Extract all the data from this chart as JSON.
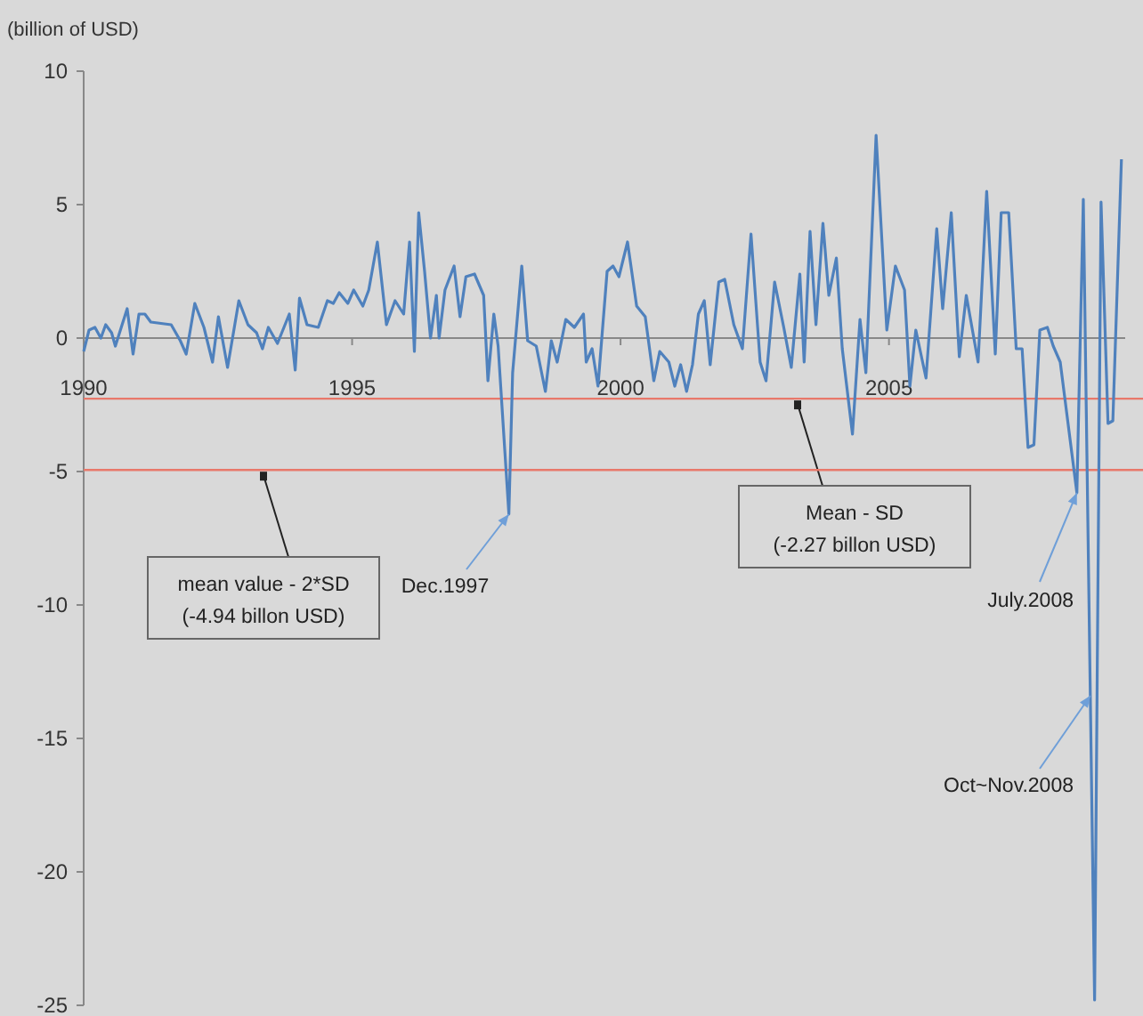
{
  "chart_data": {
    "type": "line",
    "ylabel": "(billion of USD)",
    "xlim": [
      1990,
      2009.4
    ],
    "xticks": [
      1990,
      1995,
      2000,
      2005
    ],
    "ylim": [
      -25,
      10
    ],
    "yticks": [
      -25,
      -20,
      -15,
      -10,
      -5,
      0,
      5,
      10
    ],
    "grid": false,
    "marker": "none",
    "line_style": "solid",
    "series": [
      {
        "color": "#4f81bd",
        "x": [
          1990.0,
          1990.1,
          1990.21,
          1990.32,
          1990.41,
          1990.52,
          1990.59,
          1990.7,
          1990.81,
          1990.92,
          1991.03,
          1991.14,
          1991.25,
          1991.63,
          1991.8,
          1991.91,
          1992.07,
          1992.24,
          1992.4,
          1992.51,
          1992.68,
          1992.89,
          1993.06,
          1993.22,
          1993.33,
          1993.44,
          1993.61,
          1993.83,
          1993.94,
          1994.02,
          1994.16,
          1994.37,
          1994.54,
          1994.65,
          1994.76,
          1994.92,
          1995.03,
          1995.2,
          1995.31,
          1995.47,
          1995.64,
          1995.8,
          1995.96,
          1996.07,
          1996.16,
          1996.24,
          1996.35,
          1996.46,
          1996.57,
          1996.62,
          1996.73,
          1996.9,
          1997.01,
          1997.12,
          1997.28,
          1997.45,
          1997.53,
          1997.64,
          1997.72,
          1997.92,
          1997.99,
          1998.16,
          1998.27,
          1998.43,
          1998.6,
          1998.71,
          1998.82,
          1998.98,
          1999.14,
          1999.31,
          1999.36,
          1999.47,
          1999.58,
          1999.75,
          1999.86,
          1999.97,
          2000.13,
          2000.3,
          2000.46,
          2000.62,
          2000.73,
          2000.9,
          2001.01,
          2001.12,
          2001.23,
          2001.34,
          2001.45,
          2001.56,
          2001.67,
          2001.83,
          2001.94,
          2002.11,
          2002.27,
          2002.43,
          2002.6,
          2002.71,
          2002.87,
          2003.04,
          2003.18,
          2003.34,
          2003.42,
          2003.53,
          2003.64,
          2003.77,
          2003.88,
          2004.02,
          2004.13,
          2004.32,
          2004.46,
          2004.57,
          2004.76,
          2004.96,
          2005.12,
          2005.29,
          2005.39,
          2005.5,
          2005.69,
          2005.89,
          2006.0,
          2006.16,
          2006.31,
          2006.44,
          2006.66,
          2006.82,
          2006.98,
          2007.09,
          2007.23,
          2007.37,
          2007.48,
          2007.59,
          2007.7,
          2007.81,
          2007.95,
          2008.06,
          2008.19,
          2008.5,
          2008.62,
          2008.83,
          2008.95,
          2009.08,
          2009.17,
          2009.33
        ],
        "values": [
          -0.5,
          0.3,
          0.4,
          0,
          0.5,
          0.2,
          -0.3,
          0.4,
          1.1,
          -0.6,
          0.9,
          0.9,
          0.6,
          0.5,
          -0.1,
          -0.6,
          1.3,
          0.4,
          -0.9,
          0.8,
          -1.1,
          1.4,
          0.5,
          0.2,
          -0.4,
          0.4,
          -0.2,
          0.9,
          -1.2,
          1.5,
          0.5,
          0.4,
          1.4,
          1.3,
          1.7,
          1.3,
          1.8,
          1.2,
          1.8,
          3.6,
          0.5,
          1.4,
          0.9,
          3.6,
          -0.5,
          4.7,
          2.5,
          0,
          1.6,
          0,
          1.8,
          2.7,
          0.8,
          2.3,
          2.4,
          1.6,
          -1.6,
          0.9,
          -0.3,
          -6.6,
          -1.3,
          2.7,
          -0.1,
          -0.3,
          -2.0,
          -0.1,
          -0.9,
          0.7,
          0.4,
          0.9,
          -0.9,
          -0.4,
          -1.8,
          2.5,
          2.7,
          2.3,
          3.6,
          1.2,
          0.8,
          -1.6,
          -0.5,
          -0.9,
          -1.8,
          -1.0,
          -2.0,
          -1.0,
          0.9,
          1.4,
          -1.0,
          2.1,
          2.2,
          0.5,
          -0.4,
          3.9,
          -0.9,
          -1.6,
          2.1,
          0.4,
          -1.1,
          2.4,
          -0.9,
          4.0,
          0.5,
          4.3,
          1.6,
          3.0,
          -0.4,
          -3.6,
          0.7,
          -1.3,
          7.6,
          0.3,
          2.7,
          1.8,
          -1.8,
          0.3,
          -1.5,
          4.1,
          1.1,
          4.7,
          -0.7,
          1.6,
          -0.9,
          5.5,
          -0.6,
          4.7,
          4.7,
          -0.4,
          -0.4,
          -4.1,
          -4.0,
          0.3,
          0.4,
          -0.3,
          -0.9,
          -5.8,
          5.2,
          -24.8,
          5.1,
          -3.2,
          -3.1,
          6.7
        ]
      }
    ],
    "ref_lines": [
      {
        "axis": "y",
        "value": -2.27,
        "label": "Mean - SD (-2.27 billon USD)",
        "color": "#e8786a"
      },
      {
        "axis": "y",
        "value": -4.94,
        "label": "mean value - 2*SD (-4.94 billon USD)",
        "color": "#e8786a"
      }
    ],
    "annotations": [
      {
        "text": "Dec.1997",
        "x": 1997.92,
        "y": -6.6
      },
      {
        "text": "July.2008",
        "x": 2008.5,
        "y": -5.8
      },
      {
        "text": "Oct~Nov.2008",
        "x": 2008.75,
        "y": -13.4
      }
    ]
  }
}
